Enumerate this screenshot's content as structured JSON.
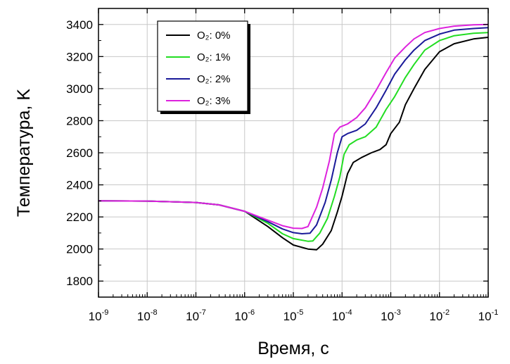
{
  "chart_data": {
    "type": "line",
    "title": "",
    "xlabel": "Время, с",
    "ylabel": "Температура, K",
    "xscale": "log",
    "xlim": [
      1e-09,
      0.1
    ],
    "ylim": [
      1700,
      3500
    ],
    "x_ticks": [
      -9,
      -8,
      -7,
      -6,
      -5,
      -4,
      -3,
      -2,
      -1
    ],
    "x_tick_base": "10",
    "y_ticks": [
      1800,
      2000,
      2200,
      2400,
      2600,
      2800,
      3000,
      3200,
      3400
    ],
    "grid": true,
    "legend_position": "top-left",
    "series": [
      {
        "name": "O₂: 0%",
        "color": "#000000",
        "points": [
          [
            1e-09,
            2300
          ],
          [
            1e-08,
            2299
          ],
          [
            1e-07,
            2290
          ],
          [
            3e-07,
            2275
          ],
          [
            1e-06,
            2235
          ],
          [
            3e-06,
            2140
          ],
          [
            6e-06,
            2070
          ],
          [
            1e-05,
            2025
          ],
          [
            2e-05,
            2000
          ],
          [
            3e-05,
            1995
          ],
          [
            4e-05,
            2030
          ],
          [
            6e-05,
            2115
          ],
          [
            8e-05,
            2230
          ],
          [
            0.0001,
            2330
          ],
          [
            0.00013,
            2470
          ],
          [
            0.00017,
            2540
          ],
          [
            0.00025,
            2570
          ],
          [
            0.0004,
            2600
          ],
          [
            0.0006,
            2620
          ],
          [
            0.0008,
            2650
          ],
          [
            0.001,
            2720
          ],
          [
            0.0015,
            2790
          ],
          [
            0.002,
            2900
          ],
          [
            0.003,
            3000
          ],
          [
            0.005,
            3120
          ],
          [
            0.01,
            3230
          ],
          [
            0.02,
            3280
          ],
          [
            0.05,
            3310
          ],
          [
            0.1,
            3320
          ]
        ]
      },
      {
        "name": "O₂: 1%",
        "color": "#22dd22",
        "points": [
          [
            1e-09,
            2300
          ],
          [
            1e-08,
            2299
          ],
          [
            1e-07,
            2290
          ],
          [
            3e-07,
            2275
          ],
          [
            1e-06,
            2235
          ],
          [
            3e-06,
            2160
          ],
          [
            6e-06,
            2095
          ],
          [
            1e-05,
            2065
          ],
          [
            2e-05,
            2048
          ],
          [
            2.5e-05,
            2050
          ],
          [
            3.5e-05,
            2100
          ],
          [
            5e-05,
            2190
          ],
          [
            7e-05,
            2330
          ],
          [
            9e-05,
            2450
          ],
          [
            0.00011,
            2590
          ],
          [
            0.00014,
            2650
          ],
          [
            0.0002,
            2680
          ],
          [
            0.0003,
            2700
          ],
          [
            0.0005,
            2760
          ],
          [
            0.0008,
            2870
          ],
          [
            0.0012,
            2950
          ],
          [
            0.002,
            3070
          ],
          [
            0.003,
            3150
          ],
          [
            0.005,
            3240
          ],
          [
            0.01,
            3300
          ],
          [
            0.02,
            3330
          ],
          [
            0.05,
            3345
          ],
          [
            0.1,
            3350
          ]
        ]
      },
      {
        "name": "O₂: 2%",
        "color": "#1a1a99",
        "points": [
          [
            1e-09,
            2300
          ],
          [
            1e-08,
            2299
          ],
          [
            1e-07,
            2290
          ],
          [
            3e-07,
            2275
          ],
          [
            1e-06,
            2235
          ],
          [
            3e-06,
            2170
          ],
          [
            6e-06,
            2125
          ],
          [
            1e-05,
            2102
          ],
          [
            1.5e-05,
            2095
          ],
          [
            2.2e-05,
            2098
          ],
          [
            3e-05,
            2150
          ],
          [
            4.5e-05,
            2290
          ],
          [
            6e-05,
            2430
          ],
          [
            8e-05,
            2600
          ],
          [
            0.0001,
            2700
          ],
          [
            0.00013,
            2720
          ],
          [
            0.0002,
            2740
          ],
          [
            0.0003,
            2780
          ],
          [
            0.0005,
            2880
          ],
          [
            0.0008,
            2990
          ],
          [
            0.0012,
            3090
          ],
          [
            0.002,
            3180
          ],
          [
            0.003,
            3240
          ],
          [
            0.005,
            3300
          ],
          [
            0.01,
            3340
          ],
          [
            0.02,
            3365
          ],
          [
            0.05,
            3375
          ],
          [
            0.1,
            3380
          ]
        ]
      },
      {
        "name": "O₂: 3%",
        "color": "#dd22dd",
        "points": [
          [
            1e-09,
            2300
          ],
          [
            1e-08,
            2299
          ],
          [
            1e-07,
            2290
          ],
          [
            3e-07,
            2275
          ],
          [
            1e-06,
            2235
          ],
          [
            3e-06,
            2180
          ],
          [
            6e-06,
            2145
          ],
          [
            1e-05,
            2130
          ],
          [
            1.5e-05,
            2128
          ],
          [
            2e-05,
            2140
          ],
          [
            3e-05,
            2260
          ],
          [
            4e-05,
            2380
          ],
          [
            5.5e-05,
            2550
          ],
          [
            7e-05,
            2720
          ],
          [
            9e-05,
            2760
          ],
          [
            0.00013,
            2780
          ],
          [
            0.0002,
            2820
          ],
          [
            0.0003,
            2880
          ],
          [
            0.0005,
            2990
          ],
          [
            0.0008,
            3100
          ],
          [
            0.0012,
            3190
          ],
          [
            0.002,
            3260
          ],
          [
            0.003,
            3310
          ],
          [
            0.005,
            3350
          ],
          [
            0.01,
            3375
          ],
          [
            0.02,
            3390
          ],
          [
            0.05,
            3398
          ],
          [
            0.1,
            3400
          ]
        ]
      }
    ]
  }
}
